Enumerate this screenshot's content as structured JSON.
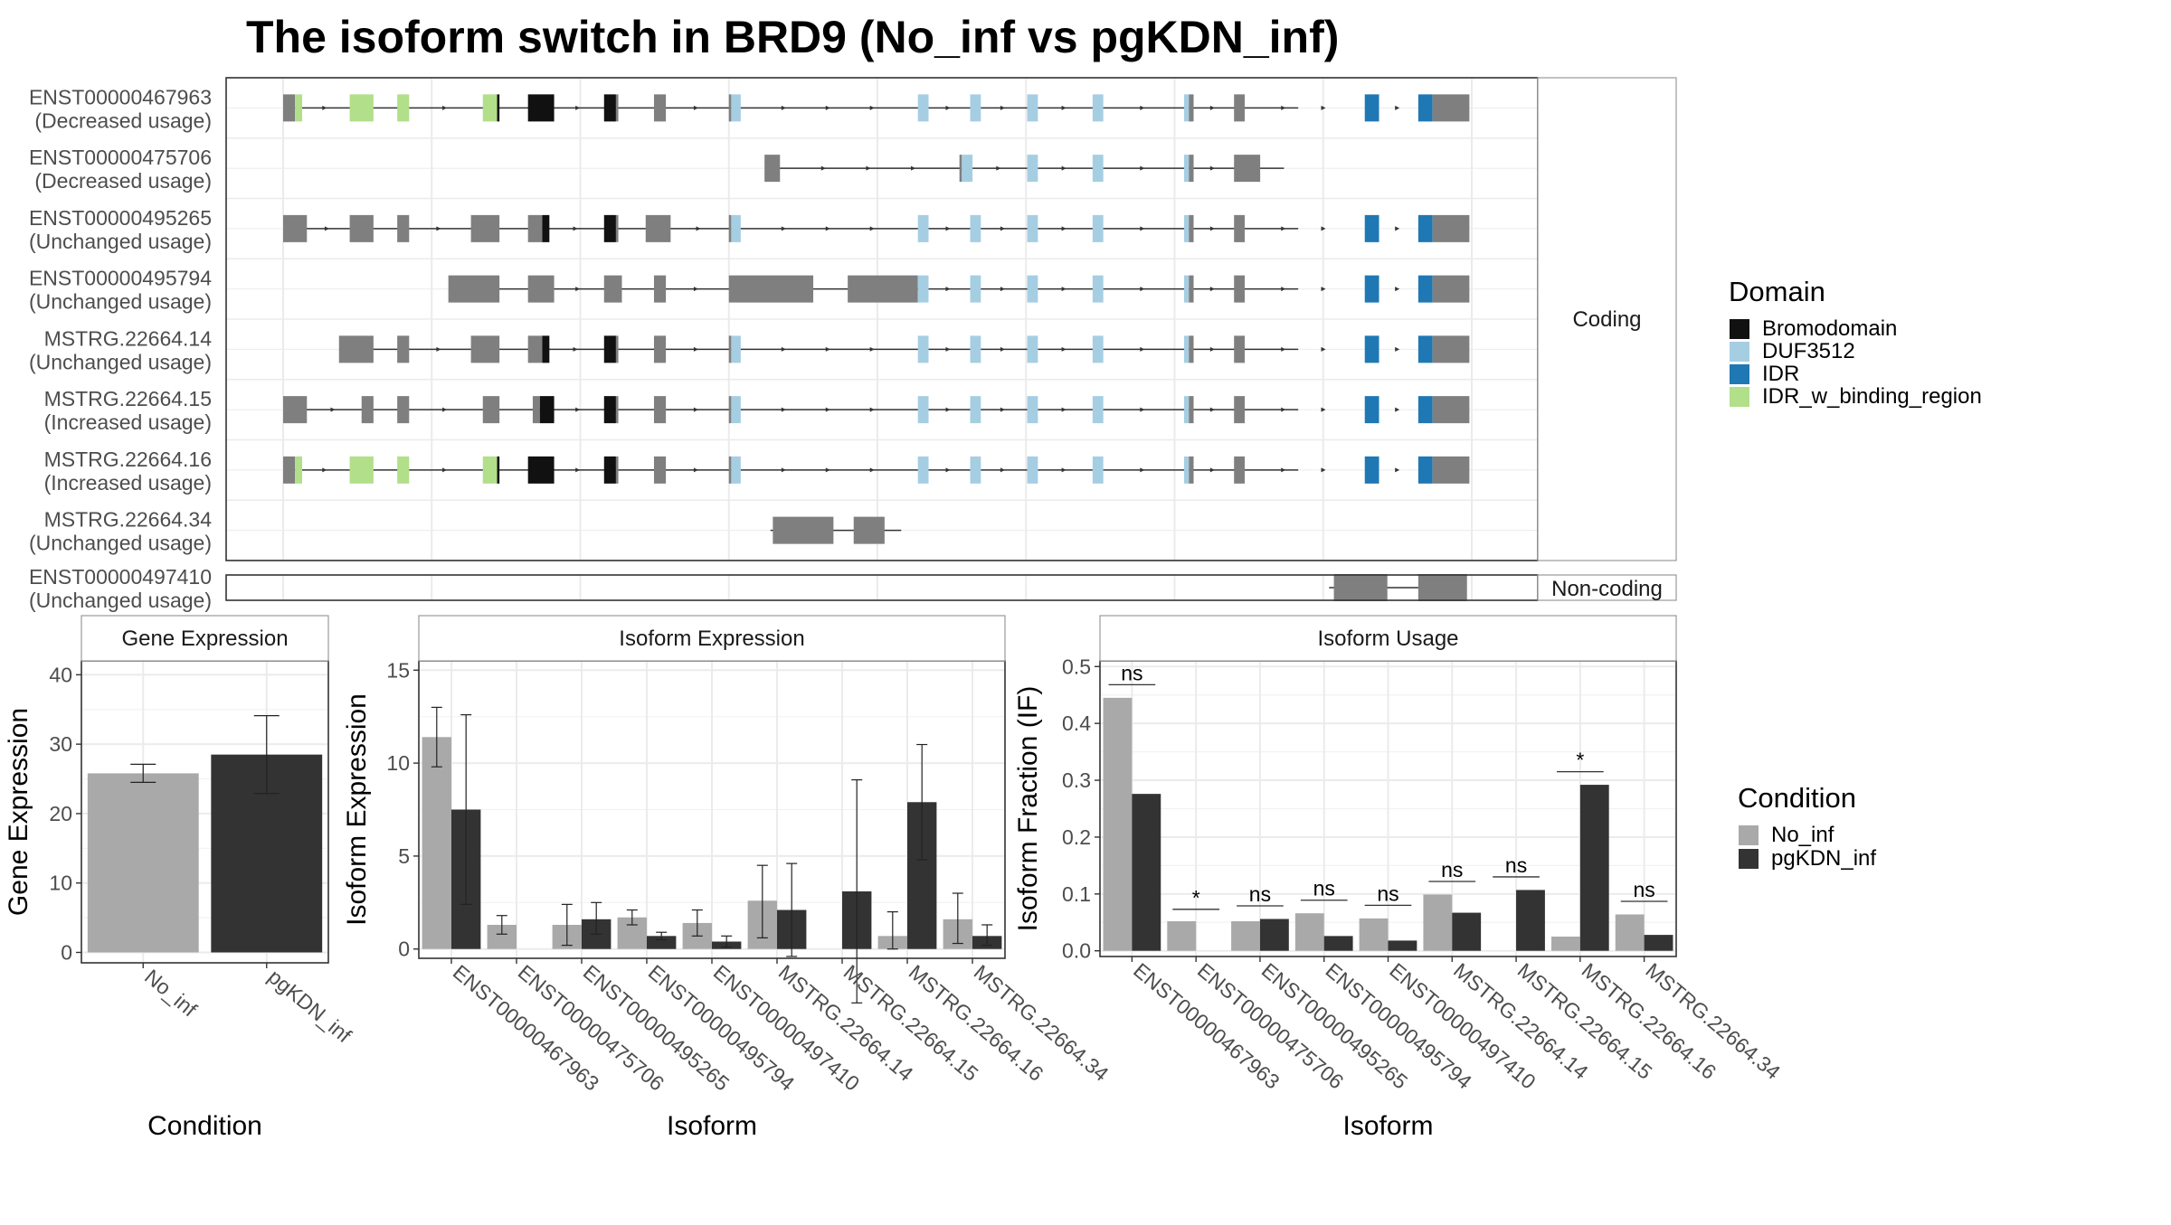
{
  "title": "The isoform switch in BRD9 (No_inf vs pgKDN_inf)",
  "colors": {
    "Bromodomain": "#111111",
    "DUF3512": "#a6cee3",
    "IDR": "#1f78b4",
    "IDR_w_binding_region": "#b2df8a",
    "exon": "#7f7f7f",
    "No_inf": "#a9a9a9",
    "pgKDN_inf": "#333333",
    "grid": "#ebebeb",
    "panel_border": "#333333",
    "strip_fill": "#ffffff"
  },
  "structure_panel": {
    "coding_label": "Coding",
    "noncoding_label": "Non-coding",
    "x_range": [
      0,
      1000
    ],
    "coding": [
      {
        "id": "ENST00000467963",
        "usage": "(Decreased usage)",
        "line": [
          4,
          854
        ],
        "exons": [
          [
            0,
            10,
            "exon"
          ],
          [
            10,
            16,
            "IDR_w_binding_region"
          ],
          [
            56,
            76,
            "IDR_w_binding_region"
          ],
          [
            96,
            106,
            "IDR_w_binding_region"
          ],
          [
            168,
            180,
            "IDR_w_binding_region"
          ],
          [
            180,
            182,
            "Bromodomain"
          ],
          [
            206,
            228,
            "Bromodomain"
          ],
          [
            270,
            280,
            "Bromodomain"
          ],
          [
            280,
            282,
            "exon"
          ],
          [
            312,
            322,
            "exon"
          ],
          [
            375,
            377,
            "exon"
          ],
          [
            377,
            385,
            "DUF3512"
          ],
          [
            534,
            543,
            "DUF3512"
          ],
          [
            578,
            587,
            "DUF3512"
          ],
          [
            626,
            635,
            "DUF3512"
          ],
          [
            681,
            690,
            "DUF3512"
          ],
          [
            758,
            762,
            "DUF3512"
          ],
          [
            762,
            766,
            "exon"
          ],
          [
            800,
            809,
            "exon"
          ],
          [
            910,
            922,
            "IDR"
          ],
          [
            955,
            967,
            "IDR"
          ],
          [
            967,
            998,
            "exon"
          ]
        ]
      },
      {
        "id": "ENST00000475706",
        "usage": "(Decreased usage)",
        "line": [
          410,
          842
        ],
        "exons": [
          [
            405,
            418,
            "exon"
          ],
          [
            569,
            571,
            "exon"
          ],
          [
            571,
            580,
            "DUF3512"
          ],
          [
            626,
            635,
            "DUF3512"
          ],
          [
            681,
            690,
            "DUF3512"
          ],
          [
            758,
            762,
            "DUF3512"
          ],
          [
            762,
            766,
            "exon"
          ],
          [
            800,
            822,
            "exon"
          ]
        ]
      },
      {
        "id": "ENST00000495265",
        "usage": "(Unchanged usage)",
        "line": [
          4,
          854
        ],
        "exons": [
          [
            0,
            20,
            "exon"
          ],
          [
            56,
            76,
            "exon"
          ],
          [
            96,
            106,
            "exon"
          ],
          [
            158,
            182,
            "exon"
          ],
          [
            206,
            218,
            "exon"
          ],
          [
            218,
            224,
            "Bromodomain"
          ],
          [
            270,
            280,
            "Bromodomain"
          ],
          [
            280,
            282,
            "exon"
          ],
          [
            305,
            326,
            "exon"
          ],
          [
            375,
            377,
            "exon"
          ],
          [
            377,
            385,
            "DUF3512"
          ],
          [
            534,
            543,
            "DUF3512"
          ],
          [
            578,
            587,
            "DUF3512"
          ],
          [
            626,
            635,
            "DUF3512"
          ],
          [
            681,
            690,
            "DUF3512"
          ],
          [
            758,
            762,
            "DUF3512"
          ],
          [
            762,
            766,
            "exon"
          ],
          [
            800,
            809,
            "exon"
          ],
          [
            910,
            922,
            "IDR"
          ],
          [
            955,
            967,
            "IDR"
          ],
          [
            967,
            998,
            "exon"
          ]
        ]
      },
      {
        "id": "ENST00000495794",
        "usage": "(Unchanged usage)",
        "line": [
          140,
          854
        ],
        "exons": [
          [
            139,
            182,
            "exon"
          ],
          [
            206,
            228,
            "exon"
          ],
          [
            270,
            285,
            "exon"
          ],
          [
            312,
            322,
            "exon"
          ],
          [
            375,
            446,
            "exon"
          ],
          [
            475,
            534,
            "exon"
          ],
          [
            534,
            543,
            "DUF3512"
          ],
          [
            578,
            587,
            "DUF3512"
          ],
          [
            626,
            635,
            "DUF3512"
          ],
          [
            681,
            690,
            "DUF3512"
          ],
          [
            758,
            762,
            "DUF3512"
          ],
          [
            762,
            766,
            "exon"
          ],
          [
            800,
            809,
            "exon"
          ],
          [
            910,
            922,
            "IDR"
          ],
          [
            955,
            967,
            "IDR"
          ],
          [
            967,
            998,
            "exon"
          ]
        ]
      },
      {
        "id": "MSTRG.22664.14",
        "usage": "(Unchanged usage)",
        "line": [
          48,
          854
        ],
        "exons": [
          [
            47,
            76,
            "exon"
          ],
          [
            96,
            106,
            "exon"
          ],
          [
            158,
            182,
            "exon"
          ],
          [
            206,
            218,
            "exon"
          ],
          [
            218,
            224,
            "Bromodomain"
          ],
          [
            270,
            280,
            "Bromodomain"
          ],
          [
            280,
            282,
            "exon"
          ],
          [
            312,
            322,
            "exon"
          ],
          [
            375,
            377,
            "exon"
          ],
          [
            377,
            385,
            "DUF3512"
          ],
          [
            534,
            543,
            "DUF3512"
          ],
          [
            578,
            587,
            "DUF3512"
          ],
          [
            626,
            635,
            "DUF3512"
          ],
          [
            681,
            690,
            "DUF3512"
          ],
          [
            758,
            762,
            "DUF3512"
          ],
          [
            762,
            766,
            "exon"
          ],
          [
            800,
            809,
            "exon"
          ],
          [
            910,
            922,
            "IDR"
          ],
          [
            955,
            967,
            "IDR"
          ],
          [
            967,
            998,
            "exon"
          ]
        ]
      },
      {
        "id": "MSTRG.22664.15",
        "usage": "(Increased usage)",
        "line": [
          4,
          854
        ],
        "exons": [
          [
            0,
            20,
            "exon"
          ],
          [
            66,
            76,
            "exon"
          ],
          [
            96,
            106,
            "exon"
          ],
          [
            168,
            182,
            "exon"
          ],
          [
            210,
            216,
            "exon"
          ],
          [
            216,
            228,
            "Bromodomain"
          ],
          [
            270,
            280,
            "Bromodomain"
          ],
          [
            280,
            282,
            "exon"
          ],
          [
            312,
            322,
            "exon"
          ],
          [
            375,
            377,
            "exon"
          ],
          [
            377,
            385,
            "DUF3512"
          ],
          [
            534,
            543,
            "DUF3512"
          ],
          [
            578,
            587,
            "DUF3512"
          ],
          [
            626,
            635,
            "DUF3512"
          ],
          [
            681,
            690,
            "DUF3512"
          ],
          [
            758,
            762,
            "DUF3512"
          ],
          [
            762,
            766,
            "exon"
          ],
          [
            800,
            809,
            "exon"
          ],
          [
            910,
            922,
            "IDR"
          ],
          [
            955,
            967,
            "IDR"
          ],
          [
            967,
            998,
            "exon"
          ]
        ]
      },
      {
        "id": "MSTRG.22664.16",
        "usage": "(Increased usage)",
        "line": [
          4,
          854
        ],
        "exons": [
          [
            0,
            10,
            "exon"
          ],
          [
            10,
            16,
            "IDR_w_binding_region"
          ],
          [
            56,
            76,
            "IDR_w_binding_region"
          ],
          [
            96,
            106,
            "IDR_w_binding_region"
          ],
          [
            168,
            180,
            "IDR_w_binding_region"
          ],
          [
            180,
            182,
            "Bromodomain"
          ],
          [
            206,
            228,
            "Bromodomain"
          ],
          [
            270,
            280,
            "Bromodomain"
          ],
          [
            280,
            282,
            "exon"
          ],
          [
            312,
            322,
            "exon"
          ],
          [
            375,
            377,
            "exon"
          ],
          [
            377,
            385,
            "DUF3512"
          ],
          [
            534,
            543,
            "DUF3512"
          ],
          [
            578,
            587,
            "DUF3512"
          ],
          [
            626,
            635,
            "DUF3512"
          ],
          [
            681,
            690,
            "DUF3512"
          ],
          [
            758,
            762,
            "DUF3512"
          ],
          [
            762,
            766,
            "exon"
          ],
          [
            800,
            809,
            "exon"
          ],
          [
            910,
            922,
            "IDR"
          ],
          [
            955,
            967,
            "IDR"
          ],
          [
            967,
            998,
            "exon"
          ]
        ]
      },
      {
        "id": "MSTRG.22664.34",
        "usage": "(Unchanged usage)",
        "line": [
          410,
          520
        ],
        "exons": [
          [
            412,
            463,
            "exon"
          ],
          [
            480,
            506,
            "exon"
          ]
        ]
      }
    ],
    "noncoding": [
      {
        "id": "ENST00000497410",
        "usage": "(Unchanged usage)",
        "line": [
          880,
          960
        ],
        "exons": [
          [
            884,
            929,
            "exon"
          ],
          [
            955,
            996,
            "exon"
          ]
        ]
      }
    ]
  },
  "legend_domain": {
    "title": "Domain",
    "items": [
      "Bromodomain",
      "DUF3512",
      "IDR",
      "IDR_w_binding_region"
    ]
  },
  "legend_condition": {
    "title": "Condition",
    "items": [
      "No_inf",
      "pgKDN_inf"
    ]
  },
  "chart_data": [
    {
      "type": "bar",
      "title": "Gene Expression",
      "xlabel": "Condition",
      "ylabel": "Gene Expression",
      "categories": [
        "No_inf",
        "pgKDN_inf"
      ],
      "values": [
        25.8,
        28.5
      ],
      "error": [
        [
          24.5,
          27.1
        ],
        [
          22.9,
          34.1
        ]
      ],
      "ylim": [
        -1.5,
        42
      ],
      "yticks": [
        0,
        10,
        20,
        30,
        40
      ],
      "grid": true
    },
    {
      "type": "bar",
      "title": "Isoform Expression",
      "xlabel": "Isoform",
      "ylabel": "Isoform Expression",
      "categories": [
        "ENST00000467963",
        "ENST00000475706",
        "ENST00000495265",
        "ENST00000495794",
        "ENST00000497410",
        "MSTRG.22664.14",
        "MSTRG.22664.15",
        "MSTRG.22664.16",
        "MSTRG.22664.34"
      ],
      "series": [
        {
          "name": "No_inf",
          "values": [
            11.4,
            1.3,
            1.3,
            1.7,
            1.4,
            2.6,
            0.0,
            0.7,
            1.6
          ],
          "error": [
            [
              9.8,
              13.0
            ],
            [
              0.8,
              1.8
            ],
            [
              0.2,
              2.4
            ],
            [
              1.3,
              2.1
            ],
            [
              0.7,
              2.1
            ],
            [
              0.6,
              4.5
            ],
            null,
            [
              0.0,
              2.0
            ],
            [
              0.3,
              3.0
            ]
          ]
        },
        {
          "name": "pgKDN_inf",
          "values": [
            7.5,
            0.0,
            1.6,
            0.7,
            0.4,
            2.1,
            3.1,
            7.9,
            0.7
          ],
          "error": [
            [
              2.4,
              12.6
            ],
            null,
            [
              0.8,
              2.5
            ],
            [
              0.5,
              0.9
            ],
            [
              0.1,
              0.7
            ],
            [
              -0.4,
              4.6
            ],
            [
              -2.9,
              9.1
            ],
            [
              4.8,
              11.0
            ],
            [
              0.2,
              1.3
            ]
          ]
        }
      ],
      "ylim": [
        -0.5,
        15.5
      ],
      "yticks": [
        0,
        5,
        10,
        15
      ],
      "grid": true
    },
    {
      "type": "bar",
      "title": "Isoform Usage",
      "xlabel": "Isoform",
      "ylabel": "Isoform Fraction (IF)",
      "categories": [
        "ENST00000467963",
        "ENST00000475706",
        "ENST00000495265",
        "ENST00000495794",
        "ENST00000497410",
        "MSTRG.22664.14",
        "MSTRG.22664.15",
        "MSTRG.22664.16",
        "MSTRG.22664.34"
      ],
      "series": [
        {
          "name": "No_inf",
          "values": [
            0.445,
            0.052,
            0.052,
            0.066,
            0.057,
            0.099,
            0.0,
            0.025,
            0.064
          ]
        },
        {
          "name": "pgKDN_inf",
          "values": [
            0.276,
            0.0,
            0.056,
            0.026,
            0.018,
            0.067,
            0.107,
            0.292,
            0.028
          ]
        }
      ],
      "significance": [
        "ns",
        "*",
        "ns",
        "ns",
        "ns",
        "ns",
        "ns",
        "*",
        "ns"
      ],
      "sig_y": [
        0.468,
        0.073,
        0.079,
        0.089,
        0.08,
        0.122,
        0.13,
        0.315,
        0.087
      ],
      "ylim": [
        -0.01,
        0.51
      ],
      "yticks": [
        0.0,
        0.1,
        0.2,
        0.3,
        0.4,
        0.5
      ],
      "ytick_labels": [
        "0.0",
        "0.1",
        "0.2",
        "0.3",
        "0.4",
        "0.5"
      ],
      "grid": true
    }
  ]
}
